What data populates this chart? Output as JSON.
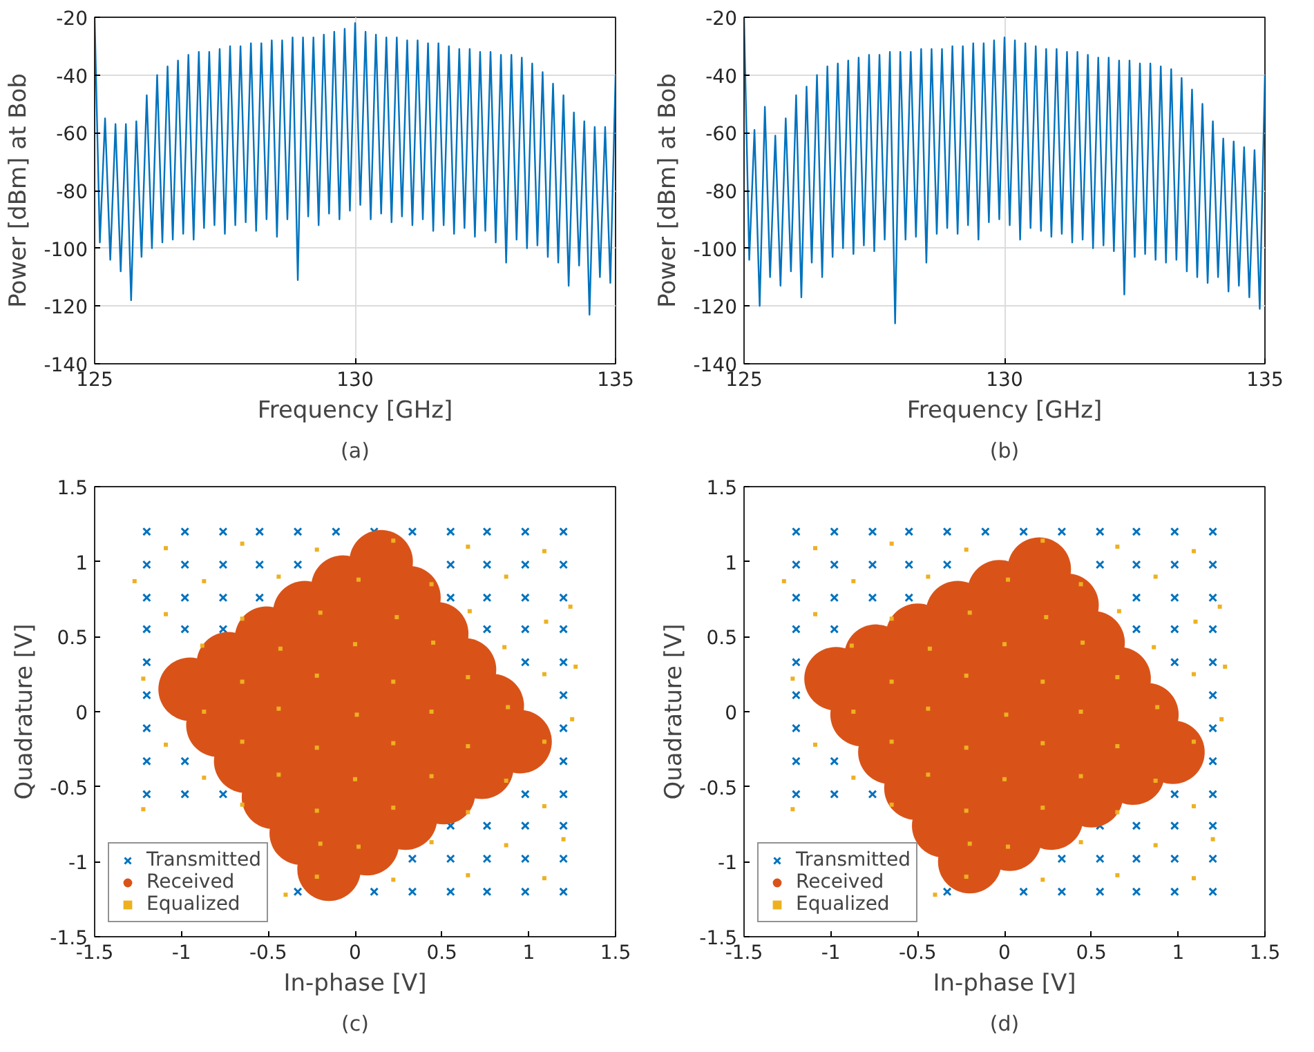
{
  "chart_data": [
    {
      "type": "line",
      "xlabel": "Frequency [GHz]",
      "ylabel": "Power [dBm] at Bob",
      "annotations": [
        "(a)"
      ],
      "xlim": [
        125,
        135
      ],
      "ylim": [
        -140,
        -20
      ],
      "xticks": [
        125,
        130,
        135
      ],
      "yticks": [
        -140,
        -120,
        -100,
        -80,
        -60,
        -40,
        -20
      ],
      "grid": true,
      "x": [
        125,
        125.1,
        125.2,
        125.3,
        125.4,
        125.5,
        125.6,
        125.7,
        125.8,
        125.9,
        126,
        126.1,
        126.2,
        126.3,
        126.4,
        126.5,
        126.6,
        126.7,
        126.8,
        126.9,
        127,
        127.1,
        127.2,
        127.3,
        127.4,
        127.5,
        127.6,
        127.7,
        127.8,
        127.9,
        128,
        128.1,
        128.2,
        128.3,
        128.4,
        128.5,
        128.6,
        128.7,
        128.8,
        128.9,
        129,
        129.1,
        129.2,
        129.3,
        129.4,
        129.5,
        129.6,
        129.7,
        129.8,
        129.9,
        130,
        130.1,
        130.2,
        130.3,
        130.4,
        130.5,
        130.6,
        130.7,
        130.8,
        130.9,
        131,
        131.1,
        131.2,
        131.3,
        131.4,
        131.5,
        131.6,
        131.7,
        131.8,
        131.9,
        132,
        132.1,
        132.2,
        132.3,
        132.4,
        132.5,
        132.6,
        132.7,
        132.8,
        132.9,
        133,
        133.1,
        133.2,
        133.3,
        133.4,
        133.5,
        133.6,
        133.7,
        133.8,
        133.9,
        134,
        134.1,
        134.2,
        134.3,
        134.4,
        134.5,
        134.6,
        134.7,
        134.8,
        134.9,
        135
      ],
      "series": [
        {
          "color": "#0072bd",
          "values": [
            -20,
            -98,
            -55,
            -104,
            -57,
            -108,
            -57,
            -118,
            -56,
            -103,
            -47,
            -100,
            -40,
            -98,
            -37,
            -97,
            -35,
            -95,
            -33,
            -97,
            -32,
            -93,
            -32,
            -92,
            -31,
            -95,
            -30,
            -92,
            -30,
            -91,
            -29,
            -94,
            -29,
            -90,
            -28,
            -96,
            -28,
            -90,
            -27,
            -111,
            -27,
            -89,
            -27,
            -92,
            -26,
            -88,
            -25,
            -90,
            -24,
            -87,
            -22,
            -85,
            -25,
            -90,
            -26,
            -88,
            -27,
            -91,
            -27,
            -89,
            -28,
            -92,
            -28,
            -90,
            -29,
            -94,
            -29,
            -92,
            -30,
            -95,
            -31,
            -93,
            -31,
            -96,
            -32,
            -94,
            -32,
            -98,
            -33,
            -105,
            -33,
            -97,
            -34,
            -100,
            -36,
            -99,
            -39,
            -103,
            -43,
            -105,
            -47,
            -113,
            -53,
            -106,
            -56,
            -123,
            -58,
            -110,
            -58,
            -112,
            -40
          ]
        }
      ]
    },
    {
      "type": "line",
      "xlabel": "Frequency [GHz]",
      "ylabel": "Power [dBm] at Bob",
      "annotations": [
        "(b)"
      ],
      "xlim": [
        125,
        135
      ],
      "ylim": [
        -140,
        -20
      ],
      "xticks": [
        125,
        130,
        135
      ],
      "yticks": [
        -140,
        -120,
        -100,
        -80,
        -60,
        -40,
        -20
      ],
      "grid": true,
      "x": [
        125,
        125.1,
        125.2,
        125.3,
        125.4,
        125.5,
        125.6,
        125.7,
        125.8,
        125.9,
        126,
        126.1,
        126.2,
        126.3,
        126.4,
        126.5,
        126.6,
        126.7,
        126.8,
        126.9,
        127,
        127.1,
        127.2,
        127.3,
        127.4,
        127.5,
        127.6,
        127.7,
        127.8,
        127.9,
        128,
        128.1,
        128.2,
        128.3,
        128.4,
        128.5,
        128.6,
        128.7,
        128.8,
        128.9,
        129,
        129.1,
        129.2,
        129.3,
        129.4,
        129.5,
        129.6,
        129.7,
        129.8,
        129.9,
        130,
        130.1,
        130.2,
        130.3,
        130.4,
        130.5,
        130.6,
        130.7,
        130.8,
        130.9,
        131,
        131.1,
        131.2,
        131.3,
        131.4,
        131.5,
        131.6,
        131.7,
        131.8,
        131.9,
        132,
        132.1,
        132.2,
        132.3,
        132.4,
        132.5,
        132.6,
        132.7,
        132.8,
        132.9,
        133,
        133.1,
        133.2,
        133.3,
        133.4,
        133.5,
        133.6,
        133.7,
        133.8,
        133.9,
        134,
        134.1,
        134.2,
        134.3,
        134.4,
        134.5,
        134.6,
        134.7,
        134.8,
        134.9,
        135
      ],
      "series": [
        {
          "color": "#0072bd",
          "values": [
            -20,
            -104,
            -59,
            -120,
            -51,
            -110,
            -61,
            -113,
            -55,
            -108,
            -47,
            -117,
            -44,
            -105,
            -40,
            -110,
            -37,
            -103,
            -36,
            -100,
            -35,
            -102,
            -34,
            -99,
            -33,
            -101,
            -33,
            -97,
            -32,
            -126,
            -32,
            -97,
            -32,
            -96,
            -31,
            -105,
            -31,
            -95,
            -31,
            -93,
            -30,
            -95,
            -30,
            -92,
            -29,
            -97,
            -29,
            -91,
            -28,
            -90,
            -27,
            -92,
            -28,
            -97,
            -29,
            -93,
            -30,
            -94,
            -31,
            -96,
            -31,
            -95,
            -32,
            -98,
            -32,
            -97,
            -33,
            -100,
            -34,
            -99,
            -34,
            -101,
            -35,
            -116,
            -35,
            -103,
            -36,
            -102,
            -36,
            -104,
            -37,
            -105,
            -38,
            -104,
            -41,
            -108,
            -45,
            -110,
            -50,
            -112,
            -56,
            -110,
            -62,
            -115,
            -63,
            -113,
            -65,
            -117,
            -66,
            -121,
            -40
          ]
        }
      ]
    },
    {
      "type": "scatter",
      "xlabel": "In-phase [V]",
      "ylabel": "Quadrature [V]",
      "annotations": [
        "(c)"
      ],
      "xlim": [
        -1.5,
        1.5
      ],
      "ylim": [
        -1.5,
        1.5
      ],
      "xticks": [
        -1.5,
        -1,
        -0.5,
        0,
        0.5,
        1,
        1.5
      ],
      "yticks": [
        -1.5,
        -1,
        -0.5,
        0,
        0.5,
        1,
        1.5
      ],
      "legend": "bottom left",
      "series": [
        {
          "name": "Transmitted",
          "color": "#0072bd",
          "marker": "cross",
          "x": [
            -1.2,
            -0.98,
            -0.76,
            -0.55,
            -0.33,
            -0.11,
            0.11,
            0.33,
            0.55,
            0.76,
            0.98,
            1.2,
            -1.2,
            -0.98,
            -0.76,
            -0.55,
            -0.33,
            0.55,
            0.76,
            0.98,
            1.2,
            -1.2,
            -0.98,
            -0.76,
            -0.55,
            0.55,
            0.76,
            0.98,
            1.2,
            -1.2,
            -0.98,
            -0.76,
            0.76,
            0.98,
            1.2,
            -1.2,
            0.98,
            1.2,
            -1.2,
            1.2,
            -1.2,
            1.2,
            -1.2,
            -0.98,
            1.2,
            -1.2,
            -0.98,
            -0.76,
            0.98,
            1.2,
            0.55,
            0.76,
            0.98,
            1.2,
            0.33,
            0.55,
            0.76,
            0.98,
            1.2,
            -0.33,
            0.11,
            0.33,
            0.55,
            0.76,
            0.98,
            1.2
          ],
          "values": [
            1.2,
            1.2,
            1.2,
            1.2,
            1.2,
            1.2,
            1.2,
            1.2,
            1.2,
            1.2,
            1.2,
            1.2,
            0.98,
            0.98,
            0.98,
            0.98,
            0.98,
            0.98,
            0.98,
            0.98,
            0.98,
            0.76,
            0.76,
            0.76,
            0.76,
            0.76,
            0.76,
            0.76,
            0.76,
            0.55,
            0.55,
            0.55,
            0.55,
            0.55,
            0.55,
            0.33,
            0.33,
            0.33,
            0.11,
            0.11,
            -0.11,
            -0.11,
            -0.33,
            -0.33,
            -0.33,
            -0.55,
            -0.55,
            -0.55,
            -0.55,
            -0.55,
            -0.76,
            -0.76,
            -0.76,
            -0.76,
            -0.98,
            -0.98,
            -0.98,
            -0.98,
            -0.98,
            -1.2,
            -1.2,
            -1.2,
            -1.2,
            -1.2,
            -1.2,
            -1.2
          ]
        },
        {
          "name": "Received",
          "color": "#d95319",
          "marker": "circle",
          "x": [
            -0.95,
            -0.79,
            -0.63,
            -0.47,
            -0.31,
            -0.15,
            -0.73,
            -0.57,
            -0.41,
            -0.25,
            -0.09,
            0.07,
            -0.51,
            -0.35,
            -0.19,
            -0.03,
            0.13,
            0.29,
            -0.29,
            -0.13,
            0.03,
            0.19,
            0.35,
            0.51,
            -0.07,
            0.09,
            0.25,
            0.41,
            0.57,
            0.73,
            0.15,
            0.31,
            0.47,
            0.63,
            0.79,
            0.95
          ],
          "values": [
            0.15,
            -0.09,
            -0.33,
            -0.57,
            -0.81,
            -1.05,
            0.32,
            0.08,
            -0.16,
            -0.4,
            -0.64,
            -0.88,
            0.49,
            0.25,
            0.01,
            -0.23,
            -0.47,
            -0.71,
            0.66,
            0.42,
            0.18,
            -0.06,
            -0.3,
            -0.54,
            0.83,
            0.59,
            0.35,
            0.11,
            -0.13,
            -0.37,
            1.0,
            0.76,
            0.52,
            0.28,
            0.04,
            -0.2
          ]
        },
        {
          "name": "Equalized",
          "color": "#edb120",
          "marker": "square",
          "x": [
            -1.09,
            -0.65,
            -0.22,
            0.22,
            0.65,
            1.09,
            -0.87,
            -0.44,
            0.02,
            0.44,
            0.87,
            1.24,
            -1.09,
            -0.65,
            -0.2,
            0.24,
            0.66,
            1.1,
            -0.88,
            -0.43,
            0.0,
            0.45,
            0.86,
            -1.22,
            -0.65,
            -0.22,
            0.22,
            0.65,
            1.09,
            -0.87,
            -0.44,
            0.01,
            0.44,
            0.88,
            1.25,
            -1.09,
            -0.65,
            -0.22,
            0.22,
            0.65,
            1.09,
            -0.87,
            -0.44,
            0.0,
            0.44,
            0.87,
            -1.22,
            -0.65,
            -0.22,
            0.22,
            0.65,
            1.09,
            -0.2,
            0.02,
            0.44,
            0.87,
            1.2,
            -0.22,
            0.22,
            0.65,
            1.09,
            -0.4,
            -1.27,
            1.27
          ],
          "values": [
            1.09,
            1.12,
            1.08,
            1.14,
            1.1,
            1.07,
            0.87,
            0.9,
            0.88,
            0.85,
            0.9,
            0.7,
            0.65,
            0.62,
            0.66,
            0.63,
            0.67,
            0.6,
            0.44,
            0.42,
            0.45,
            0.46,
            0.43,
            0.22,
            0.2,
            0.24,
            0.2,
            0.23,
            0.25,
            0.0,
            0.02,
            -0.02,
            0.0,
            0.03,
            -0.05,
            -0.22,
            -0.2,
            -0.24,
            -0.21,
            -0.23,
            -0.2,
            -0.44,
            -0.42,
            -0.45,
            -0.43,
            -0.46,
            -0.65,
            -0.62,
            -0.66,
            -0.64,
            -0.67,
            -0.63,
            -0.88,
            -0.9,
            -0.87,
            -0.89,
            -0.85,
            -1.1,
            -1.12,
            -1.09,
            -1.11,
            -1.22,
            0.87,
            0.3
          ]
        }
      ]
    },
    {
      "type": "scatter",
      "xlabel": "In-phase [V]",
      "ylabel": "Quadrature [V]",
      "annotations": [
        "(d)"
      ],
      "xlim": [
        -1.5,
        1.5
      ],
      "ylim": [
        -1.5,
        1.5
      ],
      "xticks": [
        -1.5,
        -1,
        -0.5,
        0,
        0.5,
        1,
        1.5
      ],
      "yticks": [
        -1.5,
        -1,
        -0.5,
        0,
        0.5,
        1,
        1.5
      ],
      "legend": "bottom left",
      "series": [
        {
          "name": "Transmitted",
          "color": "#0072bd",
          "marker": "cross",
          "x": [
            -1.2,
            -0.98,
            -0.76,
            -0.55,
            -0.33,
            -0.11,
            0.11,
            0.33,
            0.55,
            0.76,
            0.98,
            1.2,
            -1.2,
            -0.98,
            -0.76,
            -0.55,
            -0.33,
            0.55,
            0.76,
            0.98,
            1.2,
            -1.2,
            -0.98,
            -0.76,
            -0.55,
            0.76,
            0.98,
            1.2,
            -1.2,
            -0.98,
            0.76,
            0.98,
            1.2,
            -1.2,
            0.98,
            1.2,
            -1.2,
            1.2,
            -1.2,
            1.2,
            -1.2,
            -0.98,
            1.2,
            -1.2,
            -0.98,
            -0.76,
            0.98,
            1.2,
            0.55,
            0.76,
            0.98,
            1.2,
            0.33,
            0.55,
            0.76,
            0.98,
            1.2,
            -0.33,
            0.11,
            0.33,
            0.55,
            0.76,
            0.98,
            1.2
          ],
          "values": [
            1.2,
            1.2,
            1.2,
            1.2,
            1.2,
            1.2,
            1.2,
            1.2,
            1.2,
            1.2,
            1.2,
            1.2,
            0.98,
            0.98,
            0.98,
            0.98,
            0.98,
            0.98,
            0.98,
            0.98,
            0.98,
            0.76,
            0.76,
            0.76,
            0.76,
            0.76,
            0.76,
            0.76,
            0.55,
            0.55,
            0.55,
            0.55,
            0.55,
            0.33,
            0.33,
            0.33,
            0.11,
            0.11,
            -0.11,
            -0.11,
            -0.33,
            -0.33,
            -0.33,
            -0.55,
            -0.55,
            -0.55,
            -0.55,
            -0.55,
            -0.76,
            -0.76,
            -0.76,
            -0.76,
            -0.98,
            -0.98,
            -0.98,
            -0.98,
            -0.98,
            -1.2,
            -1.2,
            -1.2,
            -1.2,
            -1.2,
            -1.2,
            -1.2
          ]
        },
        {
          "name": "Received",
          "color": "#d95319",
          "marker": "circle",
          "x": [
            -0.97,
            -0.82,
            -0.66,
            -0.51,
            -0.35,
            -0.2,
            -0.74,
            -0.58,
            -0.43,
            -0.27,
            -0.12,
            0.03,
            -0.5,
            -0.35,
            -0.19,
            -0.04,
            0.11,
            0.27,
            -0.27,
            -0.11,
            0.04,
            0.19,
            0.35,
            0.5,
            -0.03,
            0.12,
            0.27,
            0.43,
            0.58,
            0.74,
            0.2,
            0.36,
            0.51,
            0.66,
            0.82,
            0.97
          ],
          "values": [
            0.22,
            -0.02,
            -0.27,
            -0.51,
            -0.76,
            -1.0,
            0.37,
            0.12,
            -0.12,
            -0.37,
            -0.61,
            -0.85,
            0.51,
            0.27,
            0.03,
            -0.22,
            -0.46,
            -0.71,
            0.66,
            0.41,
            0.17,
            -0.07,
            -0.32,
            -0.56,
            0.8,
            0.56,
            0.32,
            0.07,
            -0.17,
            -0.41,
            0.95,
            0.71,
            0.46,
            0.22,
            -0.02,
            -0.27
          ]
        },
        {
          "name": "Equalized",
          "color": "#edb120",
          "marker": "square",
          "x": [
            -1.09,
            -0.65,
            -0.22,
            0.22,
            0.65,
            1.09,
            -0.87,
            -0.44,
            0.02,
            0.44,
            0.87,
            1.24,
            -1.09,
            -0.65,
            -0.2,
            0.24,
            0.66,
            1.1,
            -0.88,
            -0.43,
            0.0,
            0.45,
            0.86,
            -1.22,
            -0.65,
            -0.22,
            0.22,
            0.65,
            1.09,
            -0.87,
            -0.44,
            0.01,
            0.44,
            0.88,
            1.25,
            -1.09,
            -0.65,
            -0.22,
            0.22,
            0.65,
            1.09,
            -0.87,
            -0.44,
            0.0,
            0.44,
            0.87,
            -1.22,
            -0.65,
            -0.22,
            0.22,
            0.65,
            1.09,
            -0.2,
            0.02,
            0.44,
            0.87,
            1.2,
            -0.22,
            0.22,
            0.65,
            1.09,
            -0.4,
            -1.27,
            1.27
          ],
          "values": [
            1.09,
            1.12,
            1.08,
            1.14,
            1.1,
            1.07,
            0.87,
            0.9,
            0.88,
            0.85,
            0.9,
            0.7,
            0.65,
            0.62,
            0.66,
            0.63,
            0.67,
            0.6,
            0.44,
            0.42,
            0.45,
            0.46,
            0.43,
            0.22,
            0.2,
            0.24,
            0.2,
            0.23,
            0.25,
            0.0,
            0.02,
            -0.02,
            0.0,
            0.03,
            -0.05,
            -0.22,
            -0.2,
            -0.24,
            -0.21,
            -0.23,
            -0.2,
            -0.44,
            -0.42,
            -0.45,
            -0.43,
            -0.46,
            -0.65,
            -0.62,
            -0.66,
            -0.64,
            -0.67,
            -0.63,
            -0.88,
            -0.9,
            -0.87,
            -0.89,
            -0.85,
            -1.1,
            -1.12,
            -1.09,
            -1.11,
            -1.22,
            0.87,
            0.3
          ]
        }
      ]
    }
  ]
}
